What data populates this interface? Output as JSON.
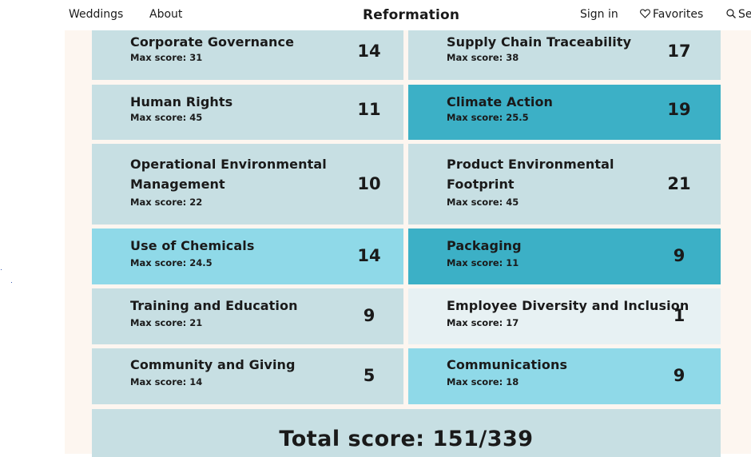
{
  "nav": {
    "weddings": "Weddings",
    "about": "About",
    "brand": "Reformation",
    "sign_in": "Sign in",
    "favorites": "Favorites",
    "search": "Se"
  },
  "colors": {
    "light": "#c7dfe3",
    "mid": "#8fd9e8",
    "dark": "#3cb0c6",
    "pale": "#e7f1f3",
    "panel": "#fdf6f0"
  },
  "max_label": "Max score:",
  "cards": [
    {
      "title": "Corporate Governance",
      "max": "31",
      "score": "14",
      "shade": "light"
    },
    {
      "title": "Supply Chain Traceability",
      "max": "38",
      "score": "17",
      "shade": "light"
    },
    {
      "title": "Human Rights",
      "max": "45",
      "score": "11",
      "shade": "light"
    },
    {
      "title": "Climate Action",
      "max": "25.5",
      "score": "19",
      "shade": "dark"
    },
    {
      "title_line1": "Operational Environmental",
      "title_line2": "Management",
      "max": "22",
      "score": "10",
      "shade": "light"
    },
    {
      "title_line1": "Product Environmental",
      "title_line2": "Footprint",
      "max": "45",
      "score": "21",
      "shade": "light"
    },
    {
      "title": "Use of Chemicals",
      "max": "24.5",
      "score": "14",
      "shade": "mid"
    },
    {
      "title": "Packaging",
      "max": "11",
      "score": "9",
      "shade": "dark"
    },
    {
      "title": "Training and Education",
      "max": "21",
      "score": "9",
      "shade": "light"
    },
    {
      "title": "Employee Diversity and Inclusion",
      "max": "17",
      "score": "1",
      "shade": "pale"
    },
    {
      "title": "Community and Giving",
      "max": "14",
      "score": "5",
      "shade": "light"
    },
    {
      "title": "Communications",
      "max": "18",
      "score": "9",
      "shade": "mid"
    }
  ],
  "total": "Total score: 151/339"
}
